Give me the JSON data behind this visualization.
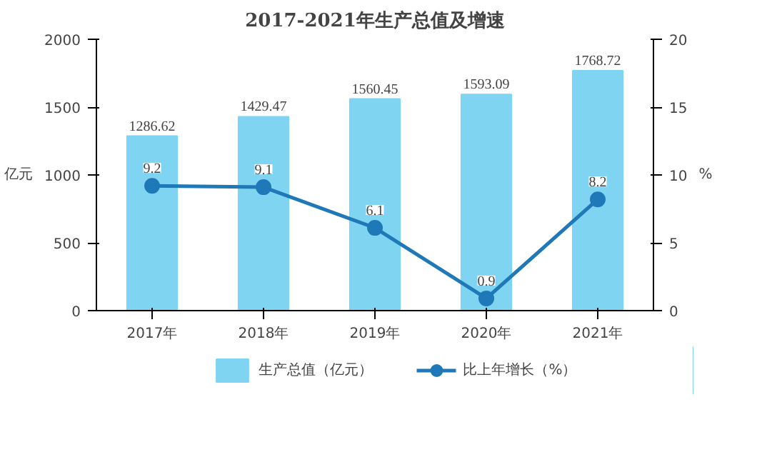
{
  "chart_data": {
    "type": "bar",
    "title": "2017-2021年生产总值及增速",
    "categories": [
      "2017年",
      "2018年",
      "2019年",
      "2020年",
      "2021年"
    ],
    "ylabel": "亿元",
    "y2label": "%",
    "ylim": [
      0,
      2000
    ],
    "yticks": [
      0,
      500,
      1000,
      1500,
      2000
    ],
    "y2lim": [
      0,
      20
    ],
    "y2ticks": [
      0,
      5,
      10,
      15,
      20
    ],
    "series": [
      {
        "name": "生产总值（亿元）",
        "color": "#7fd4f2",
        "values": [
          1286.62,
          1429.47,
          1560.45,
          1593.09,
          1768.72
        ]
      },
      {
        "name": "比上年增长（%）",
        "type": "line",
        "axis": "y2",
        "color": "#1f78b8",
        "marker": "circle",
        "values": [
          9.2,
          9.1,
          6.1,
          0.9,
          8.2
        ]
      }
    ],
    "data_labels": true,
    "grid": false,
    "legend": "bottom"
  }
}
